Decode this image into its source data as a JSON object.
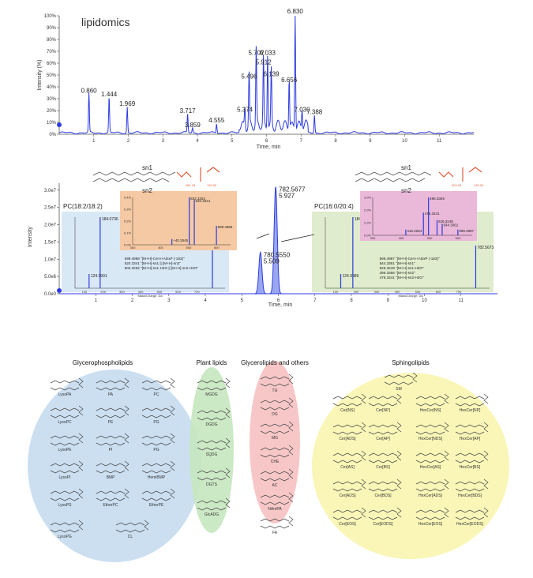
{
  "chart_data": [
    {
      "type": "line",
      "title": "lipidomics",
      "xlabel": "Time, min",
      "ylabel": "Intensity (%)",
      "xlim": [
        0,
        12
      ],
      "ylim": [
        0,
        100
      ],
      "x_ticks": [
        "1",
        "2",
        "3",
        "4",
        "5",
        "6",
        "7",
        "8",
        "9",
        "10",
        "11"
      ],
      "y_ticks": [
        "0%",
        "10%",
        "20%",
        "30%",
        "40%",
        "50%",
        "60%",
        "70%",
        "80%",
        "90%",
        "100%"
      ],
      "peaks": [
        {
          "x": 0.86,
          "y": 33,
          "label": "0.860"
        },
        {
          "x": 1.444,
          "y": 30,
          "label": "1.444"
        },
        {
          "x": 1.969,
          "y": 22,
          "label": "1.969"
        },
        {
          "x": 3.717,
          "y": 16,
          "label": "3.717"
        },
        {
          "x": 3.859,
          "y": 4,
          "label": "3.859"
        },
        {
          "x": 4.555,
          "y": 8,
          "label": "4.555"
        },
        {
          "x": 5.374,
          "y": 17,
          "label": "5.374"
        },
        {
          "x": 5.496,
          "y": 45,
          "label": "5.496"
        },
        {
          "x": 5.702,
          "y": 65,
          "label": "5.702"
        },
        {
          "x": 6.033,
          "y": 65,
          "label": "6.033"
        },
        {
          "x": 5.912,
          "y": 57,
          "label": "5.912"
        },
        {
          "x": 6.139,
          "y": 47,
          "label": "6.139"
        },
        {
          "x": 6.656,
          "y": 42,
          "label": "6.656"
        },
        {
          "x": 6.83,
          "y": 100,
          "label": "6.830"
        },
        {
          "x": 7.03,
          "y": 17,
          "label": "7.030"
        },
        {
          "x": 7.388,
          "y": 15,
          "label": "7.388"
        }
      ]
    },
    {
      "type": "line",
      "xlabel": "Time, min",
      "ylabel": "Intensity",
      "xlim": [
        0,
        12
      ],
      "ylim": [
        0,
        32000000.0
      ],
      "x_ticks": [
        "1",
        "2",
        "3",
        "4",
        "5",
        "6",
        "7",
        "8",
        "9",
        "10",
        "11"
      ],
      "y_ticks": [
        "0.0e0",
        "5.0e6",
        "1.0e7",
        "1.5e7",
        "2.0e7",
        "2.5e7",
        "3.0e7"
      ],
      "peaks": [
        {
          "x": 5.509,
          "y": 12000000.0,
          "label": "780.5550\n5.509"
        },
        {
          "x": 5.927,
          "y": 31000000.0,
          "label": "782.5677\n5.927"
        }
      ],
      "insets": [
        {
          "name": "PC(18:2/18:2)",
          "xlabel": "Mass/Charge, Da",
          "x_ticks": [
            "100",
            "200",
            "300",
            "400",
            "500",
            "600",
            "700"
          ],
          "peaks": [
            {
              "x": 124.9991,
              "y": 20,
              "label": "124.9991"
            },
            {
              "x": 184.0736,
              "y": 100,
              "label": "184.0736"
            },
            {
              "x": 782.5695,
              "y": 60,
              "label": "782.5695"
            }
          ],
          "annotations": [
            "599.4968 \"[M+H]-CerA+ADxP (-183)\"",
            "520.3341 \"[M+H]-sn1 || [M+H]-sn2\"",
            "502.3252 \"[M+H]-sn1-H2O || [M+H]-sn2-H2O\""
          ],
          "zoom": {
            "peaks": [
              {
                "x": 502.3252,
                "y": 100,
                "label": "502.3252"
              },
              {
                "x": 520.3341,
                "y": 95,
                "label": "520.3341"
              },
              {
                "x": 599.4968,
                "y": 40,
                "label": "599.4968"
              },
              {
                "x": 440.2545,
                "y": 12,
                "label": "+40.2545"
              }
            ],
            "y_ticks": [
              "0.0%",
              "0.1%",
              "0.2%",
              "0.3%",
              "0.4%"
            ],
            "x_ticks": [
              "300",
              "400",
              "500",
              "600"
            ]
          },
          "chain_labels": [
            "sn1",
            "sn2"
          ],
          "chain_values": [
            "281.18",
            "120.00"
          ]
        },
        {
          "name": "PC(16:0/20:4)",
          "xlabel": "Mass/Charge, Da",
          "x_ticks": [
            "100",
            "200",
            "300",
            "400",
            "500",
            "600",
            "700"
          ],
          "peaks": [
            {
              "x": 124.9989,
              "y": 20,
              "label": "124.9989"
            },
            {
              "x": 184.0731,
              "y": 100,
              "label": "184.0731"
            },
            {
              "x": 782.5673,
              "y": 60,
              "label": "782.5673"
            }
          ],
          "annotations": [
            "599.4987 \"[M+H]-CerA+ADxP (-183)\"",
            "544.3361 \"[M+H]-sn1\"",
            "526.3249 \"[M+H]-sn1-H2O\"",
            "496.3356 \"[M+H]-sn2\"",
            "478.3241 \"[M+H]-sn2-H2O\""
          ],
          "zoom": {
            "peaks": [
              {
                "x": 496.3356,
                "y": 100,
                "label": "496.3356"
              },
              {
                "x": 478.3241,
                "y": 60,
                "label": "478.3241"
              },
              {
                "x": 526.3249,
                "y": 40,
                "label": "526.3249"
              },
              {
                "x": 544.3361,
                "y": 30,
                "label": "544.3361"
              },
              {
                "x": 599.4987,
                "y": 15,
                "label": "599.4987"
              },
              {
                "x": 416.2284,
                "y": 15,
                "label": "416.2284"
              }
            ],
            "y_ticks": [
              "0.0%",
              "1.0%",
              "2.0%",
              "3.0%"
            ],
            "x_ticks": [
              "300",
              "400",
              "500",
              "600"
            ]
          },
          "chain_labels": [
            "sn1",
            "sn2"
          ],
          "chain_values": [
            "304.00",
            "120.00"
          ]
        }
      ]
    }
  ],
  "diagram": {
    "groups": [
      {
        "title": "Glycerophospholipids",
        "color": "#9dc3e6",
        "items": [
          "LysoPA",
          "PA",
          "PC",
          "LysoPC",
          "PE",
          "PG",
          "LysoPE",
          "PI",
          "PG",
          "LysoPI",
          "BMP",
          "HemiBMP",
          "LysoPS",
          "EtherPC",
          "EtherPE",
          "LysoPG",
          "CL"
        ]
      },
      {
        "title": "Plant lipids",
        "color": "#a9d9a0",
        "items": [
          "MGDG",
          "DGDG",
          "SQDG",
          "DGTS",
          "GlcADG"
        ]
      },
      {
        "title": "Glycerolipids and others",
        "color": "#f2a6a6",
        "items": [
          "TG",
          "DG",
          "MG",
          "CHE",
          "AC",
          "NAmPA",
          "FA"
        ]
      },
      {
        "title": "Sphingolipids",
        "color": "#f7f29a",
        "items": [
          "SM",
          "Cer[NS]",
          "Cer[NP]",
          "HexCer[NS]",
          "HexCer[NP]",
          "Cer[ADS]",
          "Cer[AP]",
          "HexCer[NDS]",
          "HexCer[AP]",
          "Cer[AS]",
          "Cer[BS]",
          "HexCer[AS]",
          "HexCer[BS]",
          "Cer[ADS]",
          "Cer[BDS]",
          "HexCer[ADS]",
          "HexCer[BDS]",
          "Cer[EOS]",
          "Cer[EODS]",
          "HexCer[EOS]",
          "HexCer[EODS]"
        ]
      }
    ]
  },
  "colors": {
    "trace": "#2d3be0",
    "inset_blue": "#d9e8f5",
    "inset_green": "#dfeccd",
    "zoom_orange": "#f5c9a3",
    "zoom_pink": "#eab8d8",
    "highlight": "#e05a3a"
  }
}
